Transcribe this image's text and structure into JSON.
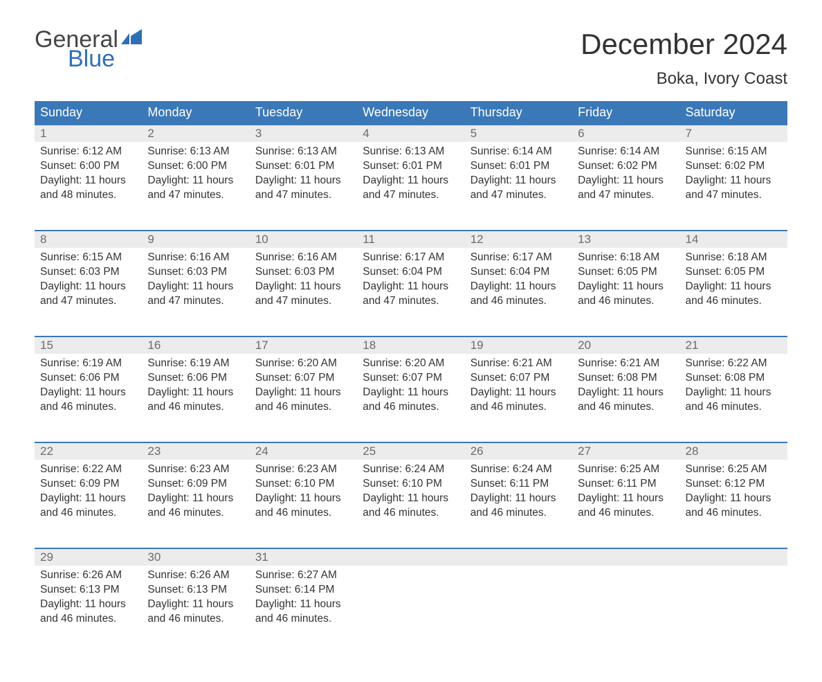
{
  "brand": {
    "part1": "General",
    "part2": "Blue",
    "flag_color": "#2f6fb3",
    "text_gray": "#444444"
  },
  "title": "December 2024",
  "location": "Boka, Ivory Coast",
  "colors": {
    "header_bg": "#3b78b8",
    "header_text": "#ffffff",
    "daynum_bg": "#ececec",
    "daynum_text": "#6b6b6b",
    "row_border": "#3b78b8",
    "body_text": "#333333",
    "page_bg": "#ffffff"
  },
  "day_headers": [
    "Sunday",
    "Monday",
    "Tuesday",
    "Wednesday",
    "Thursday",
    "Friday",
    "Saturday"
  ],
  "labels": {
    "sunrise": "Sunrise:",
    "sunset": "Sunset:",
    "daylight": "Daylight:"
  },
  "weeks": [
    [
      {
        "n": "1",
        "sr": "6:12 AM",
        "ss": "6:00 PM",
        "dl": "11 hours and 48 minutes."
      },
      {
        "n": "2",
        "sr": "6:13 AM",
        "ss": "6:00 PM",
        "dl": "11 hours and 47 minutes."
      },
      {
        "n": "3",
        "sr": "6:13 AM",
        "ss": "6:01 PM",
        "dl": "11 hours and 47 minutes."
      },
      {
        "n": "4",
        "sr": "6:13 AM",
        "ss": "6:01 PM",
        "dl": "11 hours and 47 minutes."
      },
      {
        "n": "5",
        "sr": "6:14 AM",
        "ss": "6:01 PM",
        "dl": "11 hours and 47 minutes."
      },
      {
        "n": "6",
        "sr": "6:14 AM",
        "ss": "6:02 PM",
        "dl": "11 hours and 47 minutes."
      },
      {
        "n": "7",
        "sr": "6:15 AM",
        "ss": "6:02 PM",
        "dl": "11 hours and 47 minutes."
      }
    ],
    [
      {
        "n": "8",
        "sr": "6:15 AM",
        "ss": "6:03 PM",
        "dl": "11 hours and 47 minutes."
      },
      {
        "n": "9",
        "sr": "6:16 AM",
        "ss": "6:03 PM",
        "dl": "11 hours and 47 minutes."
      },
      {
        "n": "10",
        "sr": "6:16 AM",
        "ss": "6:03 PM",
        "dl": "11 hours and 47 minutes."
      },
      {
        "n": "11",
        "sr": "6:17 AM",
        "ss": "6:04 PM",
        "dl": "11 hours and 47 minutes."
      },
      {
        "n": "12",
        "sr": "6:17 AM",
        "ss": "6:04 PM",
        "dl": "11 hours and 46 minutes."
      },
      {
        "n": "13",
        "sr": "6:18 AM",
        "ss": "6:05 PM",
        "dl": "11 hours and 46 minutes."
      },
      {
        "n": "14",
        "sr": "6:18 AM",
        "ss": "6:05 PM",
        "dl": "11 hours and 46 minutes."
      }
    ],
    [
      {
        "n": "15",
        "sr": "6:19 AM",
        "ss": "6:06 PM",
        "dl": "11 hours and 46 minutes."
      },
      {
        "n": "16",
        "sr": "6:19 AM",
        "ss": "6:06 PM",
        "dl": "11 hours and 46 minutes."
      },
      {
        "n": "17",
        "sr": "6:20 AM",
        "ss": "6:07 PM",
        "dl": "11 hours and 46 minutes."
      },
      {
        "n": "18",
        "sr": "6:20 AM",
        "ss": "6:07 PM",
        "dl": "11 hours and 46 minutes."
      },
      {
        "n": "19",
        "sr": "6:21 AM",
        "ss": "6:07 PM",
        "dl": "11 hours and 46 minutes."
      },
      {
        "n": "20",
        "sr": "6:21 AM",
        "ss": "6:08 PM",
        "dl": "11 hours and 46 minutes."
      },
      {
        "n": "21",
        "sr": "6:22 AM",
        "ss": "6:08 PM",
        "dl": "11 hours and 46 minutes."
      }
    ],
    [
      {
        "n": "22",
        "sr": "6:22 AM",
        "ss": "6:09 PM",
        "dl": "11 hours and 46 minutes."
      },
      {
        "n": "23",
        "sr": "6:23 AM",
        "ss": "6:09 PM",
        "dl": "11 hours and 46 minutes."
      },
      {
        "n": "24",
        "sr": "6:23 AM",
        "ss": "6:10 PM",
        "dl": "11 hours and 46 minutes."
      },
      {
        "n": "25",
        "sr": "6:24 AM",
        "ss": "6:10 PM",
        "dl": "11 hours and 46 minutes."
      },
      {
        "n": "26",
        "sr": "6:24 AM",
        "ss": "6:11 PM",
        "dl": "11 hours and 46 minutes."
      },
      {
        "n": "27",
        "sr": "6:25 AM",
        "ss": "6:11 PM",
        "dl": "11 hours and 46 minutes."
      },
      {
        "n": "28",
        "sr": "6:25 AM",
        "ss": "6:12 PM",
        "dl": "11 hours and 46 minutes."
      }
    ],
    [
      {
        "n": "29",
        "sr": "6:26 AM",
        "ss": "6:13 PM",
        "dl": "11 hours and 46 minutes."
      },
      {
        "n": "30",
        "sr": "6:26 AM",
        "ss": "6:13 PM",
        "dl": "11 hours and 46 minutes."
      },
      {
        "n": "31",
        "sr": "6:27 AM",
        "ss": "6:14 PM",
        "dl": "11 hours and 46 minutes."
      },
      null,
      null,
      null,
      null
    ]
  ]
}
